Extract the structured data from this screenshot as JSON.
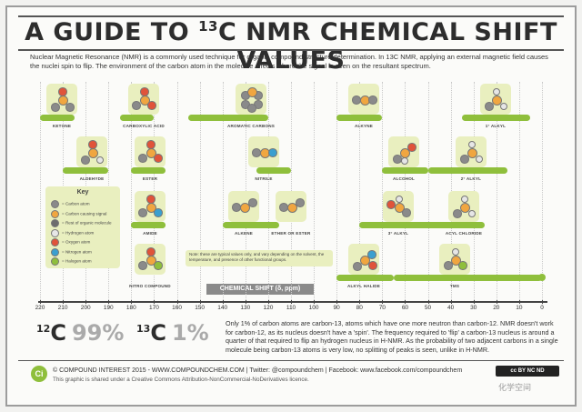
{
  "title": "A GUIDE TO 13C NMR CHEMICAL SHIFT VALUES",
  "title_parts": {
    "pre": "A GUIDE TO ",
    "sup": "13",
    "post": "C NMR CHEMICAL SHIFT VALUES"
  },
  "intro": "Nuclear Magnetic Resonance (NMR) is a commonly used technique for organic compound structure determination. In 13C NMR, applying an external magnetic field causes the nuclei spin to flip. The environment of the carbon atom in the molecule affects where the signal is seen on the resultant spectrum.",
  "axis": {
    "title": "CHEMICAL SHIFT (δ, ppm)",
    "ticks": [
      "220",
      "210",
      "200",
      "190",
      "180",
      "170",
      "160",
      "150",
      "140",
      "130",
      "120",
      "110",
      "100",
      "90",
      "80",
      "70",
      "60",
      "50",
      "40",
      "30",
      "20",
      "10",
      "0"
    ]
  },
  "groups": [
    {
      "name": "KETONE",
      "range": [
        205,
        220
      ]
    },
    {
      "name": "CARBOXYLIC ACID",
      "range": [
        170,
        185
      ]
    },
    {
      "name": "AROMATIC CARBONS",
      "range": [
        120,
        155
      ]
    },
    {
      "name": "ALKYNE",
      "range": [
        70,
        90
      ]
    },
    {
      "name": "1° ALKYL",
      "range": [
        5,
        35
      ]
    },
    {
      "name": "ALDEHYDE",
      "range": [
        190,
        210
      ]
    },
    {
      "name": "ESTER",
      "range": [
        165,
        180
      ]
    },
    {
      "name": "NITRILE",
      "range": [
        110,
        125
      ]
    },
    {
      "name": "ALCOHOL",
      "range": [
        50,
        70
      ]
    },
    {
      "name": "2° ALKYL",
      "range": [
        15,
        50
      ]
    },
    {
      "name": "AMIDE",
      "range": [
        165,
        180
      ]
    },
    {
      "name": "ALKENE",
      "range": [
        115,
        140
      ]
    },
    {
      "name": "ETHER OR ESTER",
      "range": [
        50,
        80
      ]
    },
    {
      "name": "3° ALKYL",
      "range": [
        25,
        60
      ]
    },
    {
      "name": "ACYL CHLORIDE",
      "range": [
        165,
        180
      ]
    },
    {
      "name": "NITRO COMPOUND",
      "range": [
        65,
        90
      ]
    },
    {
      "name": "ALKYL HALIDE",
      "range": [
        0,
        65
      ]
    },
    {
      "name": "TMS",
      "range": [
        0,
        0
      ]
    }
  ],
  "key": {
    "title": "Key",
    "items": [
      {
        "label": "= Carbon atom",
        "color": "#8a8a8a"
      },
      {
        "label": "= Carbon causing signal",
        "color": "#f0a640"
      },
      {
        "label": "= Rest of organic molecule",
        "color": "#6d6d6d"
      },
      {
        "label": "= Hydrogen atom",
        "color": "#e6e6e6"
      },
      {
        "label": "= Oxygen atom",
        "color": "#e0533a"
      },
      {
        "label": "= Nitrogen atom",
        "color": "#3a9fcf"
      },
      {
        "label": "= Halogen atom",
        "color": "#8fbf3c"
      }
    ]
  },
  "note": "Note: these are typical values only, and vary depending on the solvent, the temperature, and presence of other functional groups.",
  "abundance": {
    "c12_mass": "12",
    "c12_sym": "C",
    "c12_pct": "99%",
    "c13_mass": "13",
    "c13_sym": "C",
    "c13_pct": "1%",
    "text": "Only 1% of carbon atoms are carbon-13, atoms which have one more neutron than carbon-12. NMR doesn't work for carbon-12, as its nucleus doesn't have a 'spin'. The frequency required to 'flip' a carbon-13 nucleus is around a quarter of that required to flip an hydrogen nucleus in H-NMR. As the probability of two adjacent carbons in a single molecule being carbon-13 atoms is very low, no splitting of peaks is seen, unlike in H-NMR."
  },
  "footer": {
    "logo": "Ci",
    "line1": "© COMPOUND INTEREST 2015 - WWW.COMPOUNDCHEM.COM | Twitter: @compoundchem | Facebook: www.facebook.com/compoundchem",
    "line2": "This graphic is shared under a Creative Commons Attribution-NonCommercial-NoDerivatives licence.",
    "license_badge": "cc BY NC ND",
    "watermark": "化学空间"
  },
  "colors": {
    "bar": "#8fbf3c",
    "mol_bg": "#e9efbf",
    "carbon": "#8a8a8a",
    "signal": "#f0a640",
    "oxygen": "#e0533a",
    "nitrogen": "#3a9fcf",
    "halogen": "#8fbf3c",
    "hydrogen": "#e6e6e6"
  }
}
